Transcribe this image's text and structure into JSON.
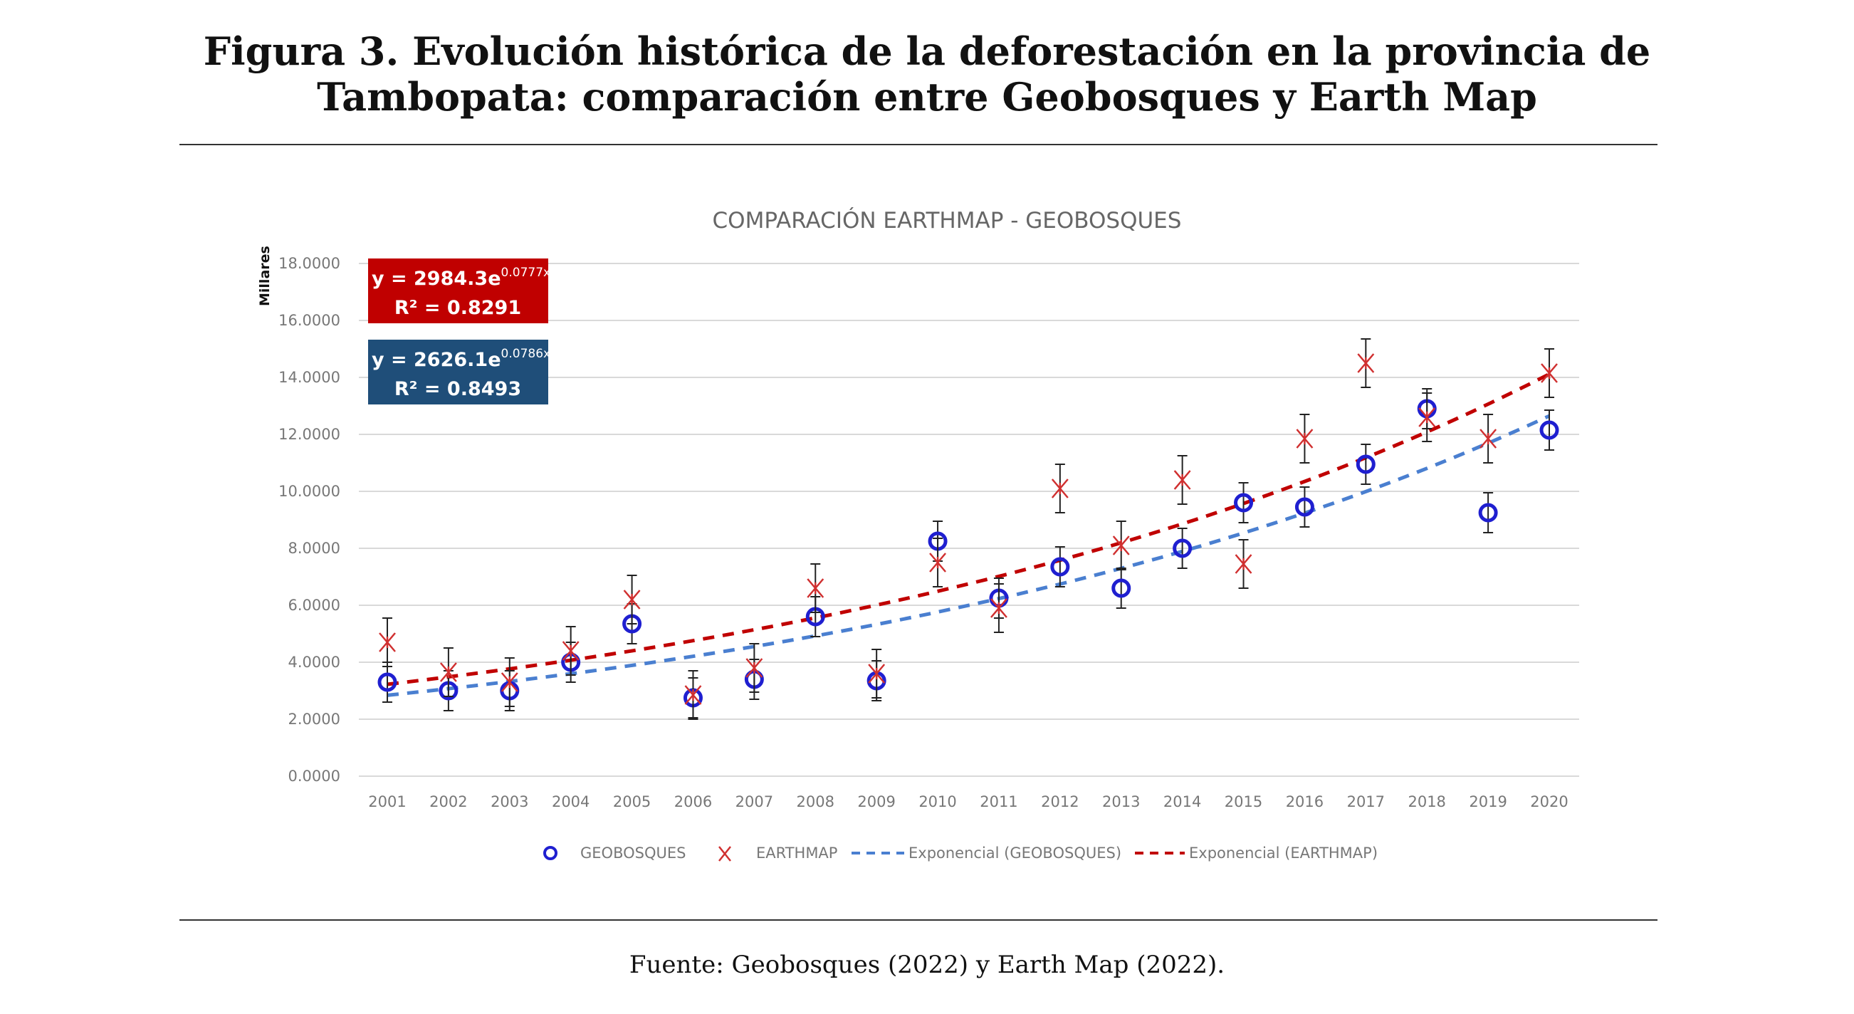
{
  "figure": {
    "title_line1": "Figura 3. Evolución histórica de la deforestación en la provincia de",
    "title_line2": "Tambopata: comparación entre Geobosques y Earth Map",
    "source": "Fuente: Geobosques (2022) y Earth Map (2022)."
  },
  "chart_data": {
    "type": "scatter",
    "title": "COMPARACIÓN EARTHMAP - GEOBOSQUES",
    "ylabel": "Millares",
    "xlabel": "",
    "ylim": [
      0,
      18
    ],
    "yticks": [
      "0.0000",
      "2.0000",
      "4.0000",
      "6.0000",
      "8.0000",
      "10.0000",
      "12.0000",
      "14.0000",
      "16.0000",
      "18.0000"
    ],
    "categories": [
      "2001",
      "2002",
      "2003",
      "2004",
      "2005",
      "2006",
      "2007",
      "2008",
      "2009",
      "2010",
      "2011",
      "2012",
      "2013",
      "2014",
      "2015",
      "2016",
      "2017",
      "2018",
      "2019",
      "2020"
    ],
    "grid": true,
    "legend_position": "bottom",
    "series": [
      {
        "name": "GEOBOSQUES",
        "marker": "circle",
        "color": "#1f1fd0",
        "values": [
          3.3,
          3.0,
          3.0,
          4.0,
          5.35,
          2.75,
          3.4,
          5.6,
          3.35,
          8.25,
          6.25,
          7.35,
          6.6,
          8.0,
          9.6,
          9.45,
          10.95,
          12.9,
          9.25,
          12.15
        ],
        "error": 0.7
      },
      {
        "name": "EARTHMAP",
        "marker": "x",
        "color": "#d03030",
        "values": [
          4.7,
          3.65,
          3.3,
          4.4,
          6.2,
          2.85,
          3.8,
          6.6,
          3.6,
          7.5,
          5.9,
          10.1,
          8.1,
          10.4,
          7.45,
          11.85,
          14.5,
          12.6,
          11.85,
          14.15
        ],
        "error": 0.85
      }
    ],
    "trendlines": [
      {
        "name": "Exponencial (GEOBOSQUES)",
        "color": "#4a7fd0",
        "a": 2626.1,
        "b": 0.0786,
        "equation": "y = 2626.1e",
        "exponent": "0.0786x",
        "r2": "R² = 0.8493",
        "box_color": "#1f4e79"
      },
      {
        "name": "Exponencial (EARTHMAP)",
        "color": "#c00000",
        "a": 2984.3,
        "b": 0.0777,
        "equation": "y = 2984.3e",
        "exponent": "0.0777x",
        "r2": "R² = 0.8291",
        "box_color": "#c00000"
      }
    ]
  }
}
